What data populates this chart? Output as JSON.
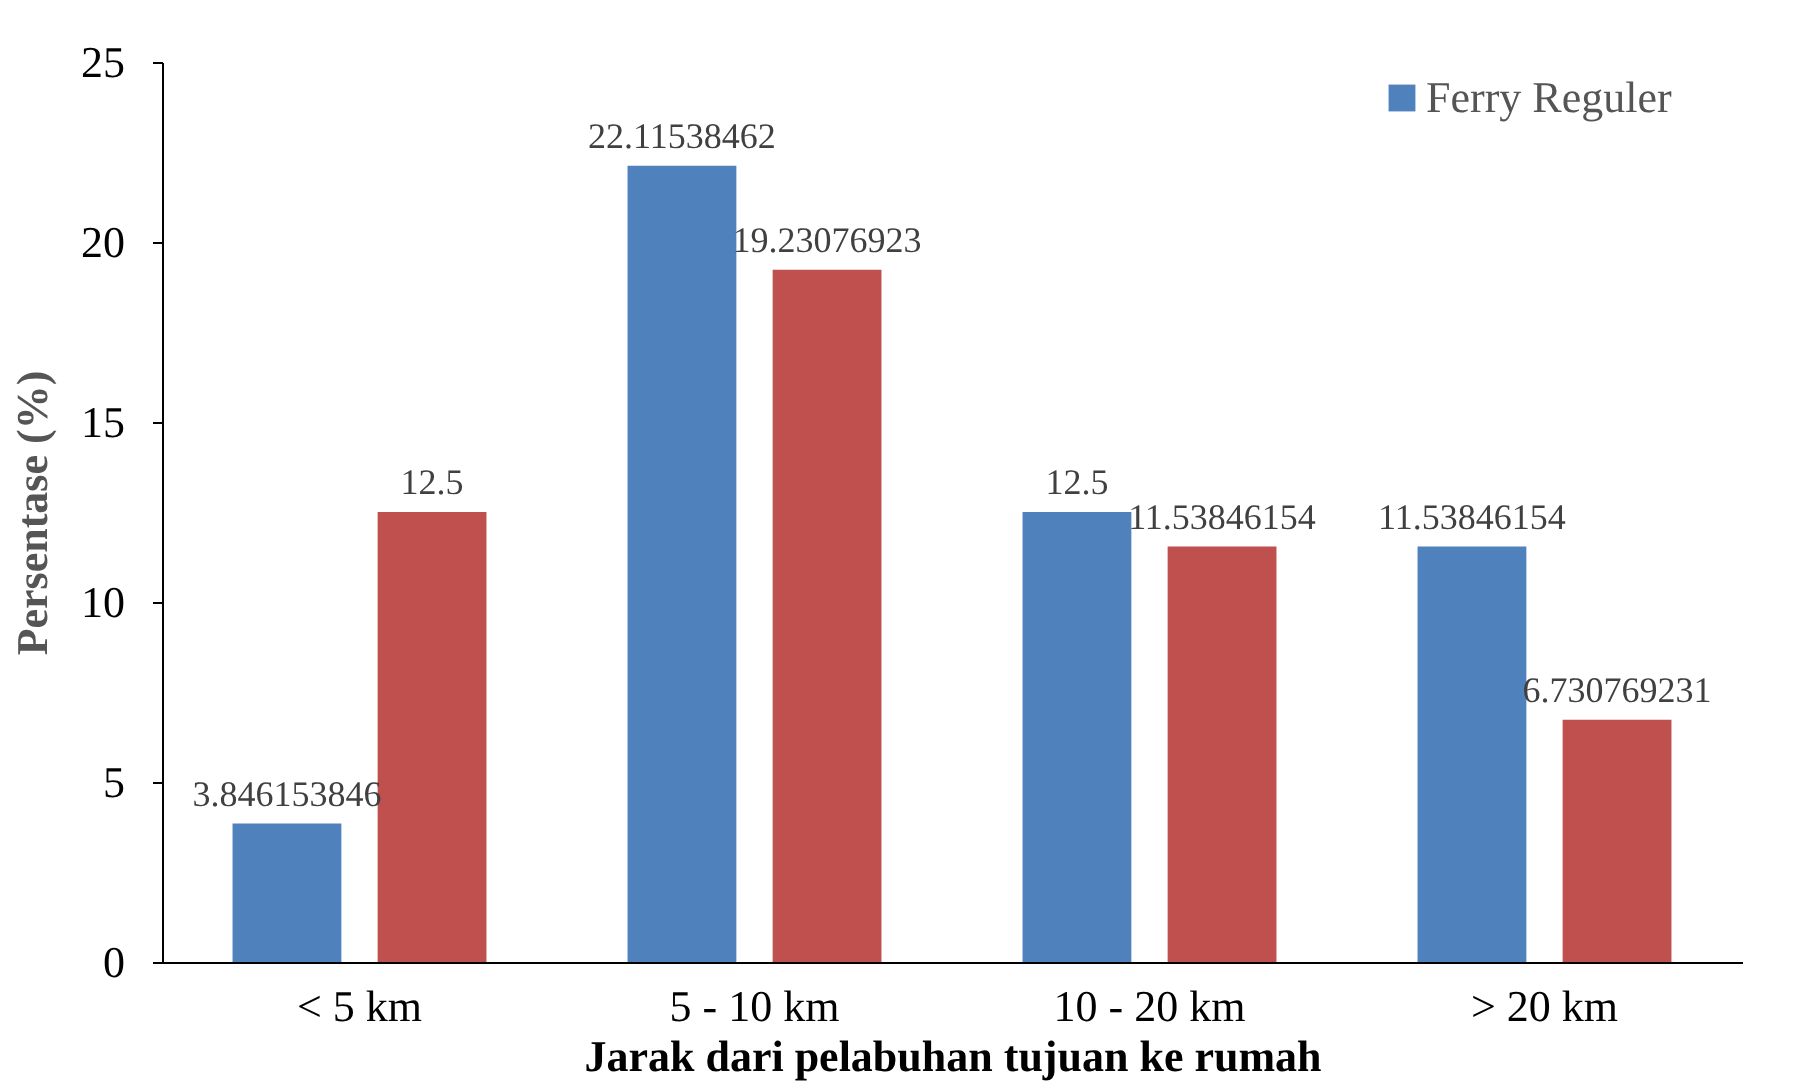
{
  "chart_data": {
    "type": "bar",
    "xlabel": "Jarak dari pelabuhan tujuan ke rumah",
    "ylabel": "Persentase (%)",
    "categories": [
      "< 5 km",
      "5 - 10 km",
      "10 - 20 km",
      "> 20 km"
    ],
    "series": [
      {
        "name": "Ferry Reguler",
        "color": "#4f81bd",
        "values": [
          3.846153846,
          22.11538462,
          12.5,
          11.53846154
        ]
      },
      {
        "color": "#c0504d",
        "values": [
          12.5,
          19.23076923,
          11.53846154,
          6.730769231
        ]
      }
    ],
    "ylim": [
      0,
      25
    ],
    "yticks": [
      0,
      5,
      10,
      15,
      20,
      25
    ],
    "grid": false,
    "legend": "top right",
    "data_labels": true
  }
}
